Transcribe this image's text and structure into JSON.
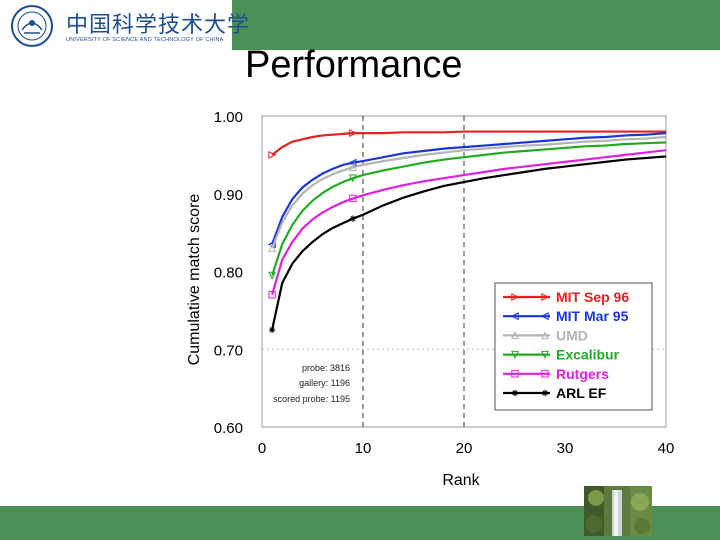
{
  "header": {
    "school_cn": "中国科学技术大学",
    "school_en": "UNIVERSITY OF SCIENCE AND TECHNOLOGY OF CHINA",
    "logo_icon": "ustc-seal-icon",
    "bar_color": "#4e8f57"
  },
  "slide": {
    "title": "Performance",
    "footer_image_icon": "waterfall-photo-icon"
  },
  "chart_data": {
    "type": "line",
    "title": "",
    "xlabel": "Rank",
    "ylabel": "Cumulative match score",
    "xlim": [
      0,
      40
    ],
    "ylim": [
      0.6,
      1.0
    ],
    "xticks": [
      "0",
      "10",
      "20",
      "30",
      "40"
    ],
    "yticks": [
      "0.60",
      "0.70",
      "0.80",
      "0.90",
      "1.00"
    ],
    "grid": "dashed vertical lines at rank 10 and 20; dashed horizontal line at 0.70",
    "legend_position": "bottom-right",
    "annotations": [
      "probe: 3816",
      "gallery: 1196",
      "scored probe: 1195"
    ],
    "x": [
      1,
      2,
      3,
      4,
      5,
      6,
      7,
      8,
      9,
      10,
      12,
      14,
      16,
      18,
      20,
      22,
      24,
      26,
      28,
      30,
      32,
      34,
      36,
      38,
      40
    ],
    "series": [
      {
        "name": "MIT Sep 96",
        "color": "#e32222",
        "marker": "triangle-right",
        "values": [
          0.95,
          0.96,
          0.967,
          0.97,
          0.973,
          0.975,
          0.976,
          0.977,
          0.978,
          0.978,
          0.978,
          0.979,
          0.979,
          0.979,
          0.98,
          0.98,
          0.98,
          0.98,
          0.98,
          0.98,
          0.98,
          0.98,
          0.98,
          0.98,
          0.98
        ]
      },
      {
        "name": "MIT Mar 95",
        "color": "#1a35d6",
        "marker": "triangle-left",
        "values": [
          0.835,
          0.87,
          0.893,
          0.908,
          0.918,
          0.926,
          0.932,
          0.937,
          0.94,
          0.942,
          0.947,
          0.952,
          0.955,
          0.958,
          0.96,
          0.962,
          0.964,
          0.966,
          0.968,
          0.97,
          0.972,
          0.973,
          0.975,
          0.976,
          0.978
        ]
      },
      {
        "name": "UMD",
        "color": "#b4b4b4",
        "marker": "triangle-up",
        "values": [
          0.83,
          0.863,
          0.885,
          0.9,
          0.911,
          0.919,
          0.925,
          0.93,
          0.934,
          0.937,
          0.942,
          0.946,
          0.95,
          0.953,
          0.956,
          0.958,
          0.96,
          0.962,
          0.963,
          0.965,
          0.967,
          0.968,
          0.97,
          0.971,
          0.973
        ]
      },
      {
        "name": "Excalibur",
        "color": "#22aa22",
        "marker": "triangle-down",
        "values": [
          0.795,
          0.835,
          0.86,
          0.878,
          0.891,
          0.901,
          0.909,
          0.915,
          0.92,
          0.924,
          0.93,
          0.935,
          0.94,
          0.944,
          0.947,
          0.95,
          0.953,
          0.955,
          0.957,
          0.959,
          0.961,
          0.962,
          0.964,
          0.965,
          0.966
        ]
      },
      {
        "name": "Rutgers",
        "color": "#e020e0",
        "marker": "square",
        "values": [
          0.77,
          0.815,
          0.838,
          0.855,
          0.867,
          0.876,
          0.883,
          0.889,
          0.894,
          0.898,
          0.905,
          0.911,
          0.916,
          0.92,
          0.924,
          0.928,
          0.932,
          0.935,
          0.938,
          0.941,
          0.944,
          0.947,
          0.95,
          0.953,
          0.956
        ]
      },
      {
        "name": "ARL EF",
        "color": "#000000",
        "marker": "star",
        "values": [
          0.725,
          0.785,
          0.81,
          0.826,
          0.838,
          0.848,
          0.856,
          0.862,
          0.868,
          0.873,
          0.885,
          0.895,
          0.903,
          0.91,
          0.915,
          0.92,
          0.924,
          0.928,
          0.932,
          0.935,
          0.938,
          0.941,
          0.944,
          0.946,
          0.948
        ]
      }
    ]
  }
}
